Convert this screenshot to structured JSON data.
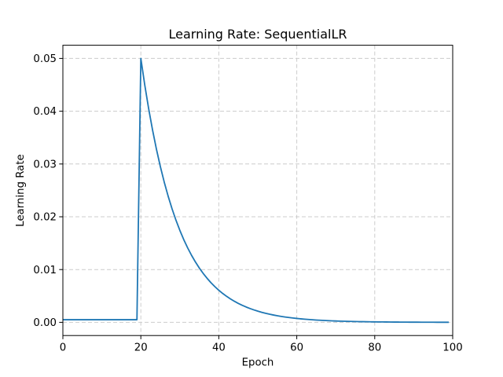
{
  "chart_data": {
    "type": "line",
    "title": "Learning Rate: SequentialLR",
    "xlabel": "Epoch",
    "ylabel": "Learning Rate",
    "xlim": [
      0,
      100
    ],
    "ylim": [
      -0.0025,
      0.0525
    ],
    "xticks": [
      0,
      20,
      40,
      60,
      80,
      100
    ],
    "xtick_labels": [
      "0",
      "20",
      "40",
      "60",
      "80",
      "100"
    ],
    "yticks": [
      0.0,
      0.01,
      0.02,
      0.03,
      0.04,
      0.05
    ],
    "ytick_labels": [
      "0.00",
      "0.01",
      "0.02",
      "0.03",
      "0.04",
      "0.05"
    ],
    "grid": true,
    "grid_style": "dashed",
    "grid_color": "#cccccc",
    "background_color": "#ffffff",
    "spine_color": "#000000",
    "legend": null,
    "series": [
      {
        "name": "learning-rate",
        "color": "#1f77b4",
        "x": [
          0,
          1,
          2,
          3,
          4,
          5,
          6,
          7,
          8,
          9,
          10,
          11,
          12,
          13,
          14,
          15,
          16,
          17,
          18,
          19,
          20,
          21,
          22,
          23,
          24,
          25,
          26,
          27,
          28,
          29,
          30,
          31,
          32,
          33,
          34,
          35,
          36,
          37,
          38,
          39,
          40,
          41,
          42,
          43,
          44,
          45,
          46,
          47,
          48,
          49,
          50,
          51,
          52,
          53,
          54,
          55,
          56,
          57,
          58,
          59,
          60,
          61,
          62,
          63,
          64,
          65,
          66,
          67,
          68,
          69,
          70,
          71,
          72,
          73,
          74,
          75,
          76,
          77,
          78,
          79,
          80,
          81,
          82,
          83,
          84,
          85,
          86,
          87,
          88,
          89,
          90,
          91,
          92,
          93,
          94,
          95,
          96,
          97,
          98,
          99
        ],
        "y": [
          0.0005,
          0.0005,
          0.0005,
          0.0005,
          0.0005,
          0.0005,
          0.0005,
          0.0005,
          0.0005,
          0.0005,
          0.0005,
          0.0005,
          0.0005,
          0.0005,
          0.0005,
          0.0005,
          0.0005,
          0.0005,
          0.0005,
          0.0005,
          0.05,
          0.045,
          0.0405,
          0.03645,
          0.032805,
          0.0295245,
          0.0265721,
          0.0239148,
          0.0215234,
          0.019371,
          0.0174339,
          0.0156905,
          0.0141215,
          0.0127093,
          0.0114384,
          0.0102946,
          0.0092651,
          0.0083386,
          0.0075047,
          0.0067543,
          0.0060788,
          0.0054709,
          0.0049239,
          0.0044315,
          0.0039883,
          0.0035895,
          0.0032305,
          0.0029075,
          0.0026167,
          0.0023551,
          0.0021196,
          0.0019076,
          0.0017168,
          0.0015452,
          0.0013906,
          0.0012516,
          0.0011264,
          0.0010138,
          0.0009124,
          0.0008212,
          0.000739,
          0.0006651,
          0.0005986,
          0.0005388,
          0.0004849,
          0.0004364,
          0.0003928,
          0.0003535,
          0.0003181,
          0.0002863,
          0.0002577,
          0.0002319,
          0.0002087,
          0.0001879,
          0.0001691,
          0.0001522,
          0.0001369,
          0.0001233,
          0.0001109,
          9.98e-05,
          8.99e-05,
          8.09e-05,
          7.28e-05,
          6.55e-05,
          5.9e-05,
          5.31e-05,
          4.78e-05,
          4.3e-05,
          3.87e-05,
          3.48e-05,
          3.13e-05,
          2.82e-05,
          2.54e-05,
          2.28e-05,
          2.06e-05,
          1.85e-05,
          1.66e-05,
          1.5e-05,
          1.35e-05,
          1.21e-05
        ]
      }
    ]
  }
}
